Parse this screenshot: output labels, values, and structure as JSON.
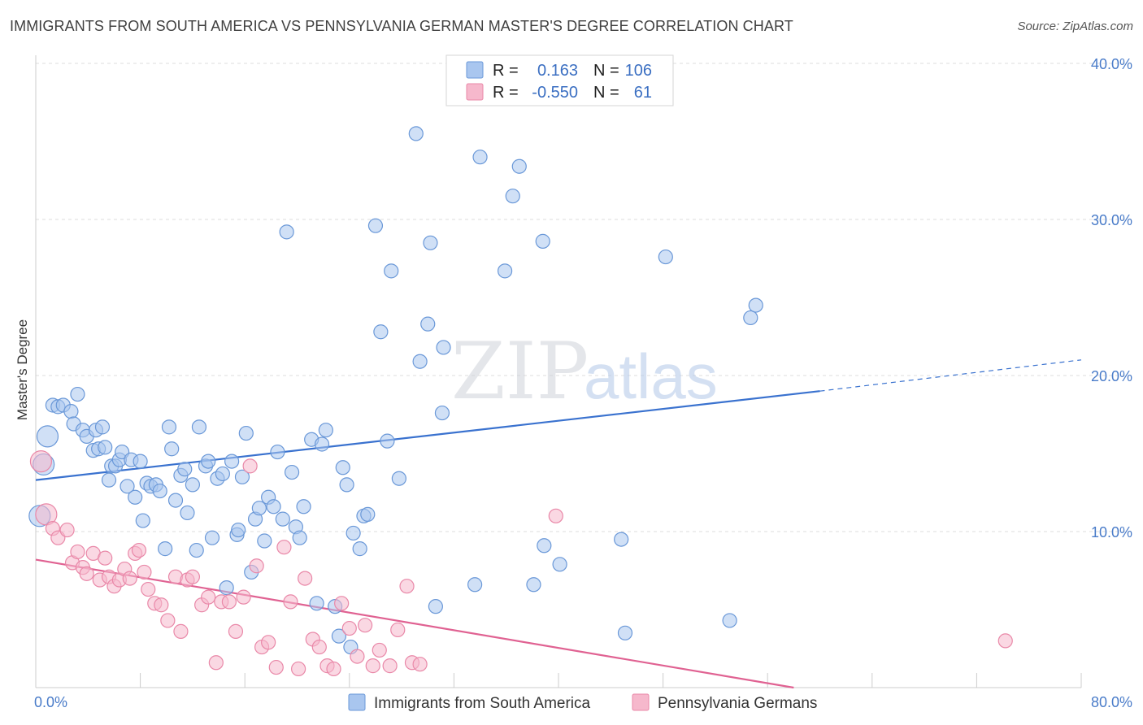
{
  "title": "IMMIGRANTS FROM SOUTH AMERICA VS PENNSYLVANIA GERMAN MASTER'S DEGREE CORRELATION CHART",
  "source": "Source: ZipAtlas.com",
  "watermark": {
    "zip": "ZIP",
    "atlas": "atlas"
  },
  "colors": {
    "blue_fill": "#a9c6ef",
    "blue_stroke": "#6a98d8",
    "blue_line": "#3a72cf",
    "pink_fill": "#f6b8cc",
    "pink_stroke": "#e988a8",
    "pink_line": "#e06292",
    "tick_label": "#4a7cc9",
    "grid": "#dcdcdc"
  },
  "legend": {
    "r_label": "R =",
    "n_label": "N =",
    "rows": [
      {
        "r": "0.163",
        "n": "106"
      },
      {
        "r": "-0.550",
        "n": "61"
      }
    ]
  },
  "chart_data": {
    "type": "scatter",
    "title": "IMMIGRANTS FROM SOUTH AMERICA VS PENNSYLVANIA GERMAN MASTER'S DEGREE CORRELATION CHART",
    "xlabel": "",
    "ylabel": "Master's Degree",
    "xlim": [
      0,
      80
    ],
    "ylim": [
      0,
      40
    ],
    "x_tick_labels": [
      "0.0%",
      "80.0%"
    ],
    "y_ticks": [
      10,
      20,
      30,
      40
    ],
    "y_tick_labels": [
      "10.0%",
      "20.0%",
      "30.0%",
      "40.0%"
    ],
    "grid": true,
    "legend_position": "top-center",
    "series": [
      {
        "name": "Immigrants from South America",
        "trend": {
          "x": [
            0,
            60
          ],
          "y": [
            13.3,
            19.0
          ],
          "dashed_to": [
            80,
            21.0
          ]
        },
        "points": [
          [
            0.3,
            11.0
          ],
          [
            0.9,
            16.1
          ],
          [
            0.6,
            14.3
          ],
          [
            1.3,
            18.1
          ],
          [
            1.7,
            18.0
          ],
          [
            2.1,
            18.1
          ],
          [
            2.7,
            17.7
          ],
          [
            3.2,
            18.8
          ],
          [
            2.9,
            16.9
          ],
          [
            3.6,
            16.5
          ],
          [
            3.9,
            16.1
          ],
          [
            4.4,
            15.2
          ],
          [
            4.6,
            16.5
          ],
          [
            4.8,
            15.3
          ],
          [
            5.1,
            16.7
          ],
          [
            5.3,
            15.4
          ],
          [
            5.6,
            13.3
          ],
          [
            5.8,
            14.2
          ],
          [
            6.1,
            14.2
          ],
          [
            6.4,
            14.6
          ],
          [
            6.6,
            15.1
          ],
          [
            7.0,
            12.9
          ],
          [
            7.3,
            14.6
          ],
          [
            7.6,
            12.2
          ],
          [
            8.0,
            14.5
          ],
          [
            8.2,
            10.7
          ],
          [
            8.5,
            13.1
          ],
          [
            8.8,
            12.9
          ],
          [
            9.2,
            13.0
          ],
          [
            9.5,
            12.6
          ],
          [
            9.9,
            8.9
          ],
          [
            10.2,
            16.7
          ],
          [
            10.4,
            15.3
          ],
          [
            10.7,
            12.0
          ],
          [
            11.1,
            13.6
          ],
          [
            11.4,
            14.0
          ],
          [
            11.6,
            11.2
          ],
          [
            12.0,
            13.0
          ],
          [
            12.3,
            8.8
          ],
          [
            12.5,
            16.7
          ],
          [
            13.0,
            14.2
          ],
          [
            13.2,
            14.5
          ],
          [
            13.5,
            9.6
          ],
          [
            13.9,
            13.4
          ],
          [
            14.3,
            13.7
          ],
          [
            14.6,
            6.4
          ],
          [
            15.0,
            14.5
          ],
          [
            15.4,
            9.8
          ],
          [
            15.5,
            10.1
          ],
          [
            15.8,
            13.5
          ],
          [
            16.1,
            16.3
          ],
          [
            16.5,
            7.4
          ],
          [
            16.8,
            10.8
          ],
          [
            17.1,
            11.5
          ],
          [
            17.5,
            9.4
          ],
          [
            17.8,
            12.2
          ],
          [
            18.2,
            11.6
          ],
          [
            18.5,
            15.1
          ],
          [
            18.9,
            10.8
          ],
          [
            19.2,
            29.2
          ],
          [
            19.6,
            13.8
          ],
          [
            19.9,
            10.3
          ],
          [
            20.2,
            9.6
          ],
          [
            20.5,
            11.6
          ],
          [
            21.1,
            15.9
          ],
          [
            21.5,
            5.4
          ],
          [
            21.9,
            15.6
          ],
          [
            22.2,
            16.5
          ],
          [
            22.9,
            5.2
          ],
          [
            23.2,
            3.3
          ],
          [
            23.5,
            14.1
          ],
          [
            23.8,
            13.0
          ],
          [
            24.1,
            2.6
          ],
          [
            24.3,
            9.9
          ],
          [
            24.8,
            8.9
          ],
          [
            25.1,
            11.0
          ],
          [
            25.4,
            11.1
          ],
          [
            26.0,
            29.6
          ],
          [
            26.4,
            22.8
          ],
          [
            26.9,
            15.8
          ],
          [
            27.2,
            26.7
          ],
          [
            27.8,
            13.4
          ],
          [
            29.1,
            35.5
          ],
          [
            29.4,
            20.9
          ],
          [
            30.0,
            23.3
          ],
          [
            30.2,
            28.5
          ],
          [
            30.6,
            5.2
          ],
          [
            31.1,
            17.6
          ],
          [
            31.2,
            21.8
          ],
          [
            33.6,
            6.6
          ],
          [
            34.0,
            34.0
          ],
          [
            35.9,
            26.7
          ],
          [
            36.5,
            31.5
          ],
          [
            37.0,
            33.4
          ],
          [
            38.1,
            6.6
          ],
          [
            38.8,
            28.6
          ],
          [
            38.9,
            9.1
          ],
          [
            40.1,
            7.9
          ],
          [
            44.8,
            9.5
          ],
          [
            45.1,
            3.5
          ],
          [
            48.2,
            27.6
          ],
          [
            53.1,
            4.3
          ],
          [
            54.7,
            23.7
          ],
          [
            55.1,
            24.5
          ]
        ]
      },
      {
        "name": "Pennsylvania Germans",
        "trend": {
          "x": [
            0,
            58
          ],
          "y": [
            8.2,
            0
          ]
        },
        "points": [
          [
            0.4,
            14.5
          ],
          [
            0.8,
            11.1
          ],
          [
            1.3,
            10.2
          ],
          [
            1.7,
            9.6
          ],
          [
            2.4,
            10.1
          ],
          [
            2.8,
            8.0
          ],
          [
            3.2,
            8.7
          ],
          [
            3.6,
            7.7
          ],
          [
            3.9,
            7.3
          ],
          [
            4.4,
            8.6
          ],
          [
            4.9,
            6.9
          ],
          [
            5.3,
            8.3
          ],
          [
            5.6,
            7.1
          ],
          [
            6.0,
            6.5
          ],
          [
            6.4,
            6.9
          ],
          [
            6.8,
            7.6
          ],
          [
            7.2,
            7.0
          ],
          [
            7.6,
            8.6
          ],
          [
            7.9,
            8.8
          ],
          [
            8.3,
            7.4
          ],
          [
            8.6,
            6.3
          ],
          [
            9.1,
            5.4
          ],
          [
            9.6,
            5.3
          ],
          [
            10.1,
            4.3
          ],
          [
            10.7,
            7.1
          ],
          [
            11.1,
            3.6
          ],
          [
            11.6,
            6.9
          ],
          [
            12.0,
            7.1
          ],
          [
            12.7,
            5.3
          ],
          [
            13.2,
            5.8
          ],
          [
            13.8,
            1.6
          ],
          [
            14.2,
            5.5
          ],
          [
            14.8,
            5.5
          ],
          [
            15.3,
            3.6
          ],
          [
            15.9,
            5.8
          ],
          [
            16.4,
            14.2
          ],
          [
            16.9,
            7.8
          ],
          [
            17.3,
            2.6
          ],
          [
            17.8,
            2.9
          ],
          [
            18.4,
            1.3
          ],
          [
            19.0,
            9.0
          ],
          [
            19.5,
            5.5
          ],
          [
            20.1,
            1.2
          ],
          [
            20.6,
            7.0
          ],
          [
            21.2,
            3.1
          ],
          [
            21.7,
            2.6
          ],
          [
            22.3,
            1.4
          ],
          [
            22.8,
            1.2
          ],
          [
            23.4,
            5.4
          ],
          [
            24.0,
            3.8
          ],
          [
            24.6,
            2.0
          ],
          [
            25.2,
            4.0
          ],
          [
            25.8,
            1.4
          ],
          [
            26.3,
            2.4
          ],
          [
            27.1,
            1.4
          ],
          [
            27.7,
            3.7
          ],
          [
            28.4,
            6.5
          ],
          [
            28.8,
            1.6
          ],
          [
            29.4,
            1.5
          ],
          [
            39.8,
            11.0
          ],
          [
            74.2,
            3.0
          ]
        ]
      }
    ],
    "legend_entries": [
      "Immigrants from South America",
      "Pennsylvania Germans"
    ]
  }
}
